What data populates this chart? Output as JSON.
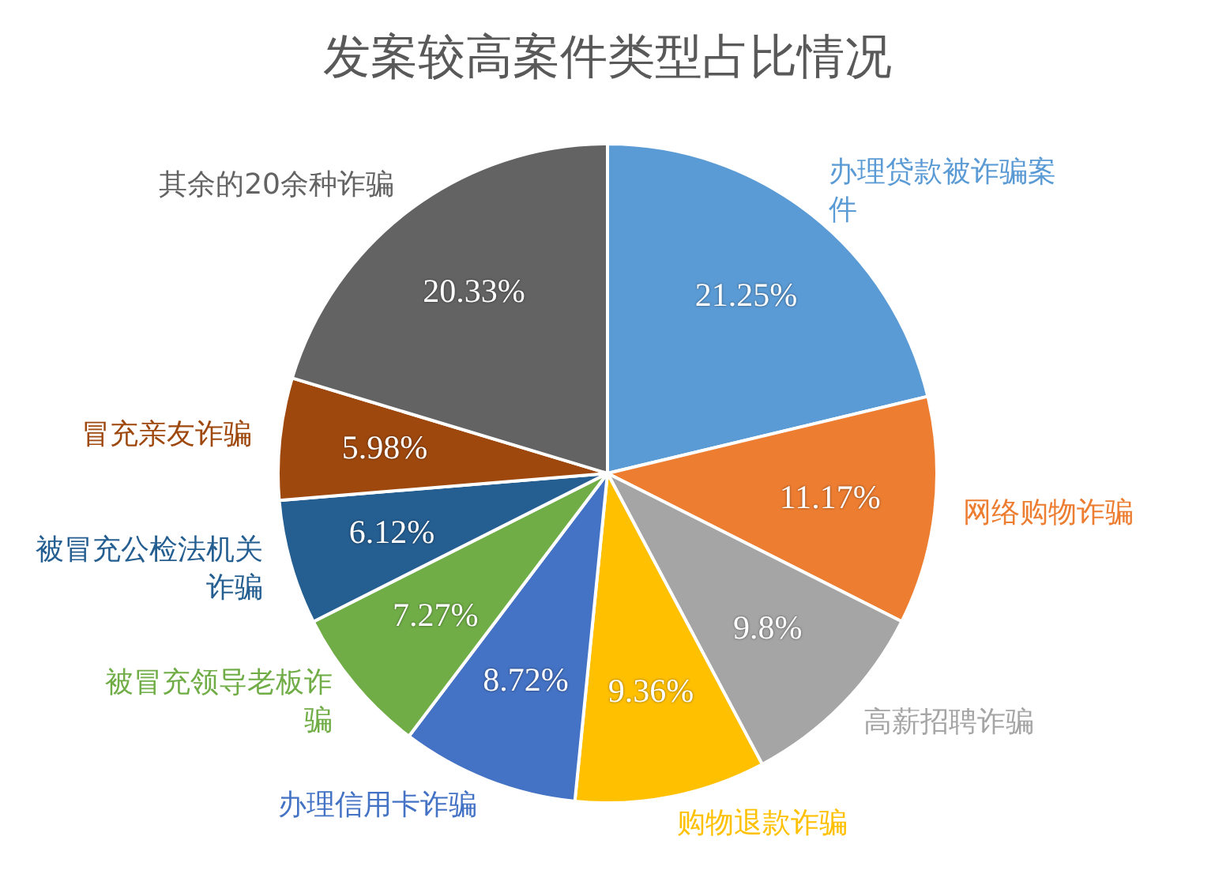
{
  "chart_data": {
    "type": "pie",
    "title": "发案较高案件类型占比情况",
    "categories": [
      "办理贷款被诈骗案件",
      "网络购物诈骗",
      "高薪招聘诈骗",
      "购物退款诈骗",
      "办理信用卡诈骗",
      "被冒充领导老板诈骗",
      "被冒充公检法机关诈骗",
      "冒充亲友诈骗",
      "其余的20余种诈骗"
    ],
    "values": [
      21.25,
      11.17,
      9.8,
      9.36,
      8.72,
      7.27,
      6.12,
      5.98,
      20.33
    ],
    "value_labels": [
      "21.25%",
      "11.17%",
      "9.8%",
      "9.36%",
      "8.72%",
      "7.27%",
      "6.12%",
      "5.98%",
      "20.33%"
    ],
    "colors": [
      "#5b9bd5",
      "#ed7d31",
      "#a5a5a5",
      "#ffc000",
      "#4472c4",
      "#70ad47",
      "#255e91",
      "#9e480e",
      "#636363"
    ],
    "legend": false
  }
}
